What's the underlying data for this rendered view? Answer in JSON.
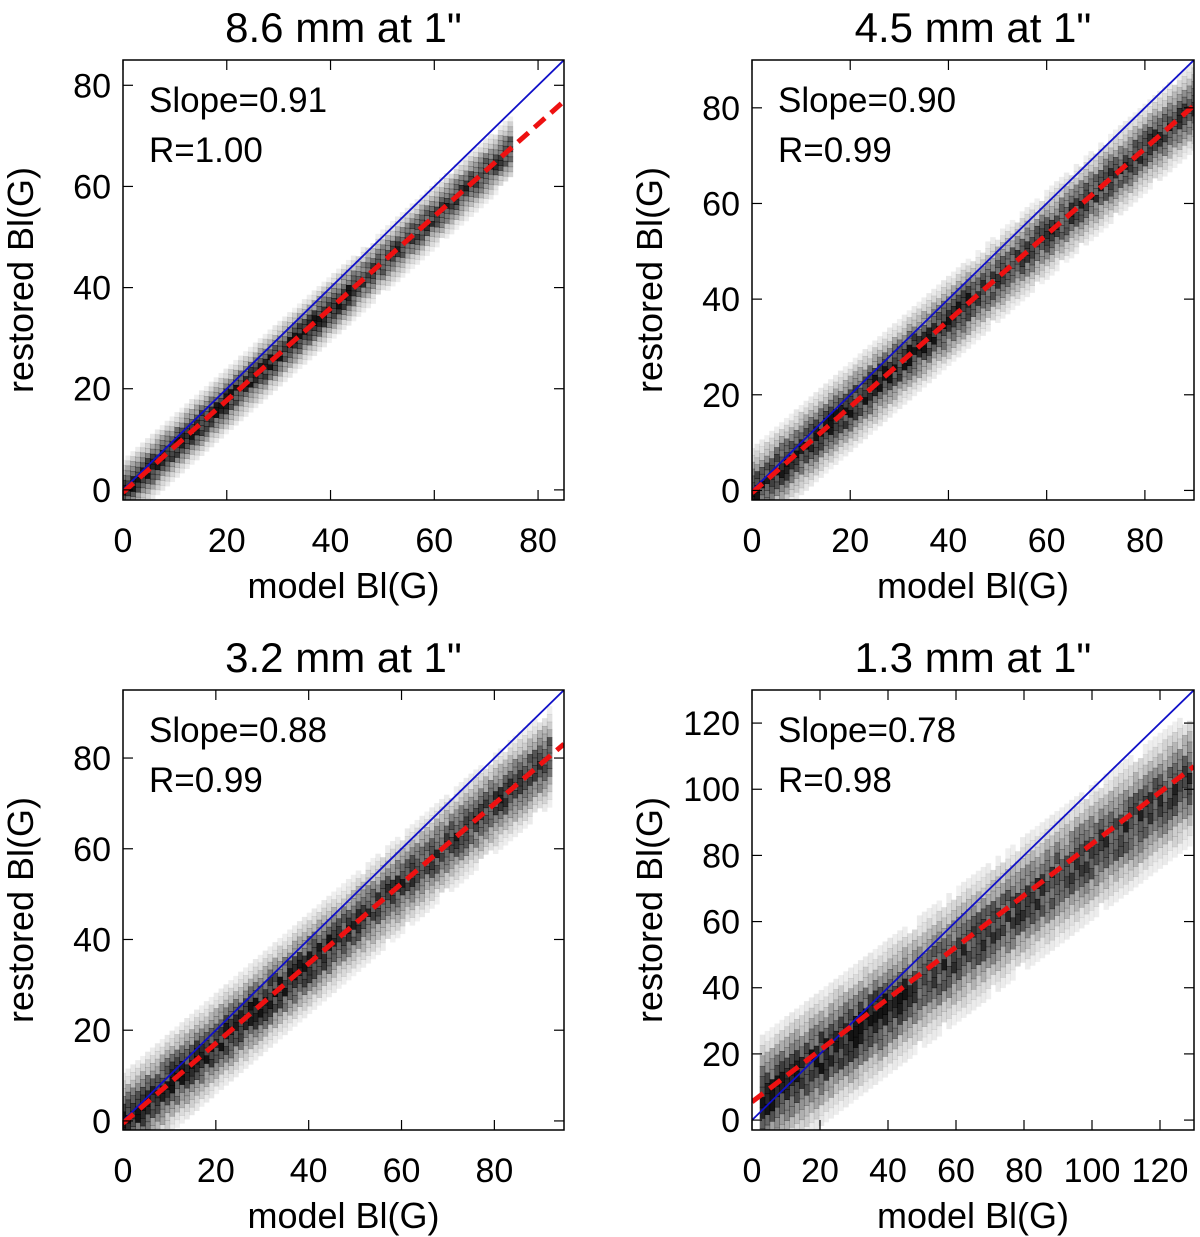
{
  "figure": {
    "colors": {
      "identity_line": "#1010c8",
      "fit_line": "#ee1111",
      "density": "#000000",
      "axes": "#000000"
    }
  },
  "chart_data": [
    {
      "type": "scatter",
      "subtype": "2d-density-scatter",
      "title": "8.6 mm at 1\"",
      "xlabel": "model Bl(G)",
      "ylabel": "restored Bl(G)",
      "xlim": [
        0,
        85
      ],
      "ylim": [
        -2,
        85
      ],
      "xticks": [
        0,
        20,
        40,
        60,
        80
      ],
      "yticks": [
        0,
        20,
        40,
        60,
        80
      ],
      "annotations": [
        "Slope=0.91",
        "R=1.00"
      ],
      "fit": {
        "slope": 0.91,
        "intercept": -0.5
      },
      "density_band": {
        "x_start": 0,
        "x_end": 75,
        "spread": 2.2,
        "intercept": -0.5
      },
      "series": [
        {
          "name": "identity (y = x)",
          "style": "solid",
          "color": "#1010c8"
        },
        {
          "name": "linear fit",
          "style": "dashed",
          "color": "#ee1111"
        }
      ]
    },
    {
      "type": "scatter",
      "subtype": "2d-density-scatter",
      "title": "4.5 mm at 1\"",
      "xlabel": "model Bl(G)",
      "ylabel": "restored Bl(G)",
      "xlim": [
        0,
        90
      ],
      "ylim": [
        -2,
        90
      ],
      "xticks": [
        0,
        20,
        40,
        60,
        80
      ],
      "yticks": [
        0,
        20,
        40,
        60,
        80
      ],
      "annotations": [
        "Slope=0.90",
        "R=0.99"
      ],
      "fit": {
        "slope": 0.9,
        "intercept": -0.5
      },
      "density_band": {
        "x_start": 0,
        "x_end": 90,
        "spread": 3.2,
        "intercept": -0.5
      },
      "series": [
        {
          "name": "identity (y = x)",
          "style": "solid",
          "color": "#1010c8"
        },
        {
          "name": "linear fit",
          "style": "dashed",
          "color": "#ee1111"
        }
      ]
    },
    {
      "type": "scatter",
      "subtype": "2d-density-scatter",
      "title": "3.2 mm at 1\"",
      "xlabel": "model Bl(G)",
      "ylabel": "restored Bl(G)",
      "xlim": [
        0,
        95
      ],
      "ylim": [
        -2,
        95
      ],
      "xticks": [
        0,
        20,
        40,
        60,
        80
      ],
      "yticks": [
        0,
        20,
        40,
        60,
        80
      ],
      "annotations": [
        "Slope=0.88",
        "R=0.99"
      ],
      "fit": {
        "slope": 0.88,
        "intercept": -0.5
      },
      "density_band": {
        "x_start": 0,
        "x_end": 92,
        "spread": 3.8,
        "intercept": -0.5
      },
      "series": [
        {
          "name": "identity (y = x)",
          "style": "solid",
          "color": "#1010c8"
        },
        {
          "name": "linear fit",
          "style": "dashed",
          "color": "#ee1111"
        }
      ]
    },
    {
      "type": "scatter",
      "subtype": "2d-density-scatter",
      "title": "1.3 mm at 1\"",
      "xlabel": "model Bl(G)",
      "ylabel": "restored Bl(G)",
      "xlim": [
        0,
        130
      ],
      "ylim": [
        -3,
        130
      ],
      "xticks": [
        0,
        20,
        40,
        60,
        80,
        100,
        120
      ],
      "yticks": [
        0,
        20,
        40,
        60,
        80,
        100,
        120
      ],
      "annotations": [
        "Slope=0.78",
        "R=0.98"
      ],
      "fit": {
        "slope": 0.78,
        "intercept": 5.5
      },
      "density_band": {
        "x_start": 3,
        "x_end": 130,
        "spread": 7.0,
        "intercept": 3
      },
      "series": [
        {
          "name": "identity (y = x)",
          "style": "solid",
          "color": "#1010c8"
        },
        {
          "name": "linear fit",
          "style": "dashed",
          "color": "#ee1111"
        }
      ]
    }
  ]
}
